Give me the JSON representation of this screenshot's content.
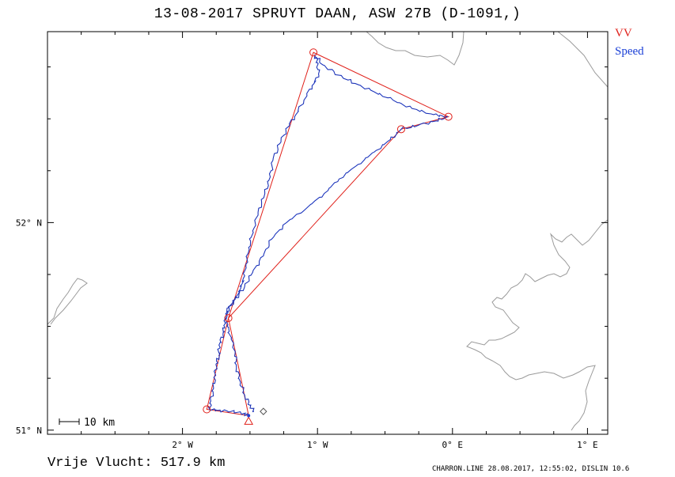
{
  "title": "13-08-2017    SPRUYT DAAN,    ASW 27B (D-1091,)",
  "legend": {
    "vv": "VV",
    "speed": "Speed"
  },
  "colors": {
    "vv": "#e0201a",
    "speed": "#1a3fd6",
    "coast": "#9a9a9a",
    "frame": "#000000"
  },
  "scale_bar": "10 km",
  "stats": {
    "label": "Vrije Vlucht:",
    "distance": "517.9 km"
  },
  "footer": "CHARRON.LINE 28.08.2017, 12:55:02, DISLIN 10.6",
  "axes": {
    "x_ticks": [
      {
        "lon": -2,
        "label": "2° W"
      },
      {
        "lon": -1,
        "label": "1° W"
      },
      {
        "lon": 0,
        "label": "0° E"
      },
      {
        "lon": 1,
        "label": "1° E"
      }
    ],
    "y_ticks": [
      {
        "lat": 52,
        "label": "52° N"
      },
      {
        "lat": 51,
        "label": "51° N"
      }
    ],
    "lon_range": [
      -3.0,
      1.15
    ],
    "lat_range": [
      50.98,
      52.92
    ]
  },
  "map_data": {
    "task_points": [
      {
        "name": "start",
        "lon": -1.51,
        "lat": 51.07,
        "marker": "triangle"
      },
      {
        "name": "tp1",
        "lon": -1.82,
        "lat": 51.1,
        "marker": "circle"
      },
      {
        "name": "tp2",
        "lon": -1.66,
        "lat": 51.54,
        "marker": "circle"
      },
      {
        "name": "tp3",
        "lon": -1.03,
        "lat": 52.82,
        "marker": "circle"
      },
      {
        "name": "tp4",
        "lon": -0.03,
        "lat": 52.51,
        "marker": "circle"
      },
      {
        "name": "tp5",
        "lon": -0.38,
        "lat": 52.45,
        "marker": "circle"
      },
      {
        "name": "finish",
        "lon": -1.43,
        "lat": 51.09,
        "marker": "diamond"
      }
    ],
    "task_route": [
      [
        -1.51,
        51.07
      ],
      [
        -1.82,
        51.1
      ],
      [
        -1.66,
        51.54
      ],
      [
        -1.03,
        52.82
      ],
      [
        -0.03,
        52.51
      ],
      [
        -0.38,
        52.45
      ],
      [
        -1.66,
        51.54
      ],
      [
        -1.51,
        51.07
      ]
    ],
    "flight_track": [
      [
        -1.51,
        51.07
      ],
      [
        -1.55,
        51.08
      ],
      [
        -1.64,
        51.09
      ],
      [
        -1.74,
        51.095
      ],
      [
        -1.8,
        51.1
      ],
      [
        -1.79,
        51.14
      ],
      [
        -1.77,
        51.2
      ],
      [
        -1.76,
        51.26
      ],
      [
        -1.75,
        51.32
      ],
      [
        -1.73,
        51.36
      ],
      [
        -1.73,
        51.41
      ],
      [
        -1.7,
        51.46
      ],
      [
        -1.69,
        51.5
      ],
      [
        -1.68,
        51.54
      ],
      [
        -1.66,
        51.59
      ],
      [
        -1.61,
        51.63
      ],
      [
        -1.57,
        51.68
      ],
      [
        -1.55,
        51.73
      ],
      [
        -1.53,
        51.8
      ],
      [
        -1.51,
        51.88
      ],
      [
        -1.48,
        51.96
      ],
      [
        -1.44,
        52.05
      ],
      [
        -1.39,
        52.14
      ],
      [
        -1.35,
        52.22
      ],
      [
        -1.33,
        52.3
      ],
      [
        -1.28,
        52.38
      ],
      [
        -1.22,
        52.46
      ],
      [
        -1.16,
        52.52
      ],
      [
        -1.1,
        52.59
      ],
      [
        -1.04,
        52.66
      ],
      [
        -0.99,
        52.71
      ],
      [
        -1.0,
        52.77
      ],
      [
        -1.02,
        52.81
      ],
      [
        -0.96,
        52.76
      ],
      [
        -0.84,
        52.71
      ],
      [
        -0.72,
        52.67
      ],
      [
        -0.58,
        52.63
      ],
      [
        -0.44,
        52.59
      ],
      [
        -0.3,
        52.55
      ],
      [
        -0.14,
        52.52
      ],
      [
        -0.04,
        52.51
      ],
      [
        -0.12,
        52.49
      ],
      [
        -0.25,
        52.47
      ],
      [
        -0.38,
        52.45
      ],
      [
        -0.46,
        52.4
      ],
      [
        -0.58,
        52.34
      ],
      [
        -0.7,
        52.28
      ],
      [
        -0.84,
        52.21
      ],
      [
        -0.95,
        52.14
      ],
      [
        -1.08,
        52.07
      ],
      [
        -1.23,
        52.0
      ],
      [
        -1.34,
        51.92
      ],
      [
        -1.4,
        51.84
      ],
      [
        -1.48,
        51.76
      ],
      [
        -1.54,
        51.69
      ],
      [
        -1.62,
        51.62
      ],
      [
        -1.68,
        51.56
      ],
      [
        -1.67,
        51.5
      ],
      [
        -1.64,
        51.44
      ],
      [
        -1.61,
        51.37
      ],
      [
        -1.6,
        51.3
      ],
      [
        -1.57,
        51.23
      ],
      [
        -1.54,
        51.17
      ],
      [
        -1.5,
        51.12
      ],
      [
        -1.47,
        51.09
      ]
    ]
  }
}
